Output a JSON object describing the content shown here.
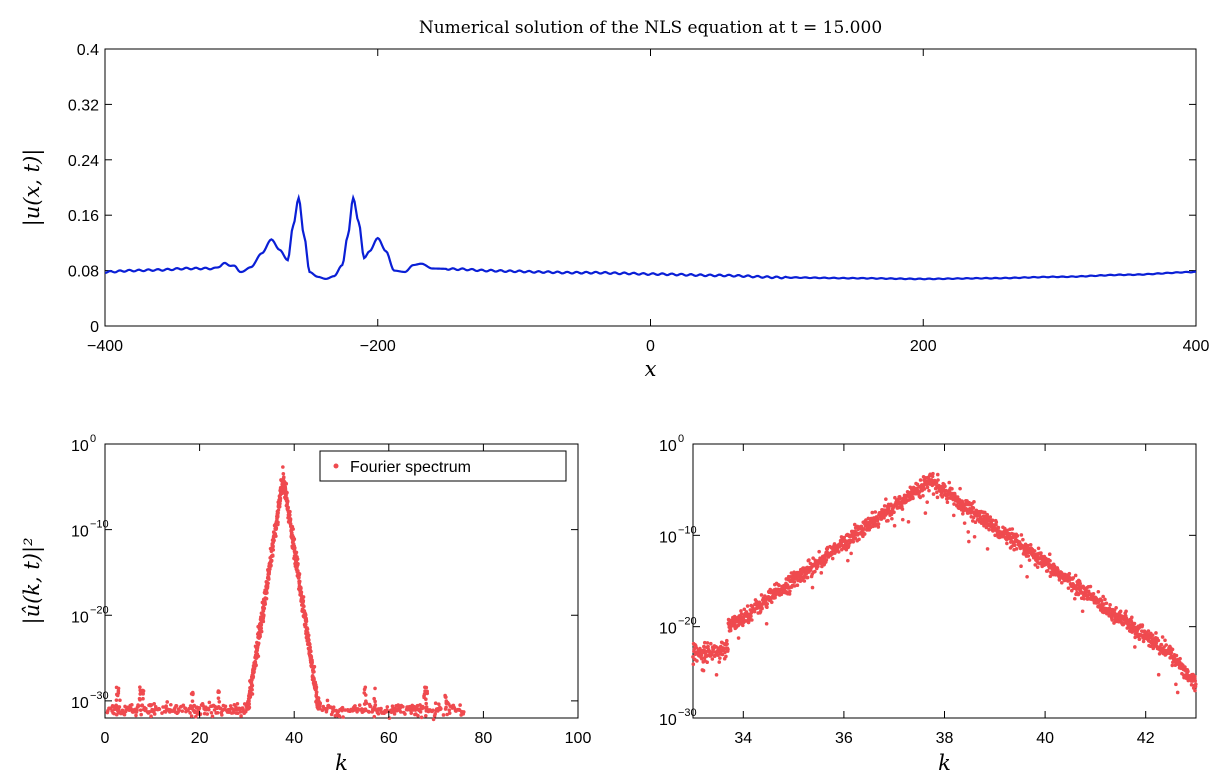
{
  "colors": {
    "line": "#0a1fd6",
    "dots": "#ef4a4f",
    "axis": "#000000",
    "background": "#ffffff"
  },
  "chart_data": [
    {
      "type": "line",
      "title": "Numerical solution of the NLS equation at t = 15.000",
      "xlabel": "x",
      "ylabel": "|u(x, t)|",
      "xlim": [
        -400,
        400
      ],
      "ylim": [
        0,
        0.4
      ],
      "xticks": [
        "−400",
        "−200",
        "0",
        "200",
        "400"
      ],
      "yticks": [
        "0",
        "0.08",
        "0.16",
        "0.24",
        "0.32",
        "0.4"
      ],
      "series": [
        {
          "x": [
            -400,
            -380,
            -360,
            -340,
            -320,
            -312,
            -305,
            -300,
            -293,
            -285,
            -278,
            -272,
            -266,
            -262,
            -258,
            -254,
            -250,
            -244,
            -238,
            -232,
            -226,
            -222,
            -218,
            -214,
            -210,
            -206,
            -200,
            -194,
            -188,
            -180,
            -174,
            -168,
            -160,
            -140,
            -120,
            -100,
            -80,
            -60,
            -40,
            -20,
            0,
            50,
            100,
            150,
            200,
            250,
            300,
            350,
            400
          ],
          "y": [
            0.078,
            0.08,
            0.081,
            0.083,
            0.083,
            0.09,
            0.086,
            0.078,
            0.085,
            0.105,
            0.125,
            0.11,
            0.095,
            0.145,
            0.185,
            0.13,
            0.078,
            0.071,
            0.068,
            0.072,
            0.088,
            0.13,
            0.185,
            0.15,
            0.098,
            0.108,
            0.127,
            0.108,
            0.08,
            0.078,
            0.088,
            0.09,
            0.083,
            0.082,
            0.08,
            0.079,
            0.078,
            0.077,
            0.077,
            0.076,
            0.075,
            0.073,
            0.07,
            0.069,
            0.068,
            0.069,
            0.071,
            0.074,
            0.078
          ]
        }
      ]
    },
    {
      "type": "scatter",
      "xlabel": "k",
      "ylabel": "|û(k, t)|²",
      "xlim": [
        0,
        100
      ],
      "ylim_log10": [
        -32,
        0
      ],
      "yscale": "log",
      "xticks": [
        "0",
        "20",
        "40",
        "60",
        "80",
        "100"
      ],
      "yticks_exp": [
        "0",
        "−10",
        "−20",
        "−30"
      ],
      "legend": {
        "label": "Fourier spectrum",
        "position": "top-right"
      },
      "series": [
        {
          "name": "Fourier spectrum",
          "peak_k": 37.7,
          "peak_log10": -4,
          "floor_log10": -31,
          "support": [
            30,
            45
          ]
        }
      ]
    },
    {
      "type": "scatter",
      "xlabel": "k",
      "xlim": [
        33,
        43
      ],
      "ylim_log10": [
        -30,
        0
      ],
      "yscale": "log",
      "xticks": [
        "34",
        "36",
        "38",
        "40",
        "42"
      ],
      "yticks_exp": [
        "0",
        "−10",
        "−20",
        "−30"
      ],
      "series": [
        {
          "peak_k": 37.7,
          "peak_log10": -4,
          "start_log10": -23,
          "end_log10": -25
        }
      ]
    }
  ]
}
